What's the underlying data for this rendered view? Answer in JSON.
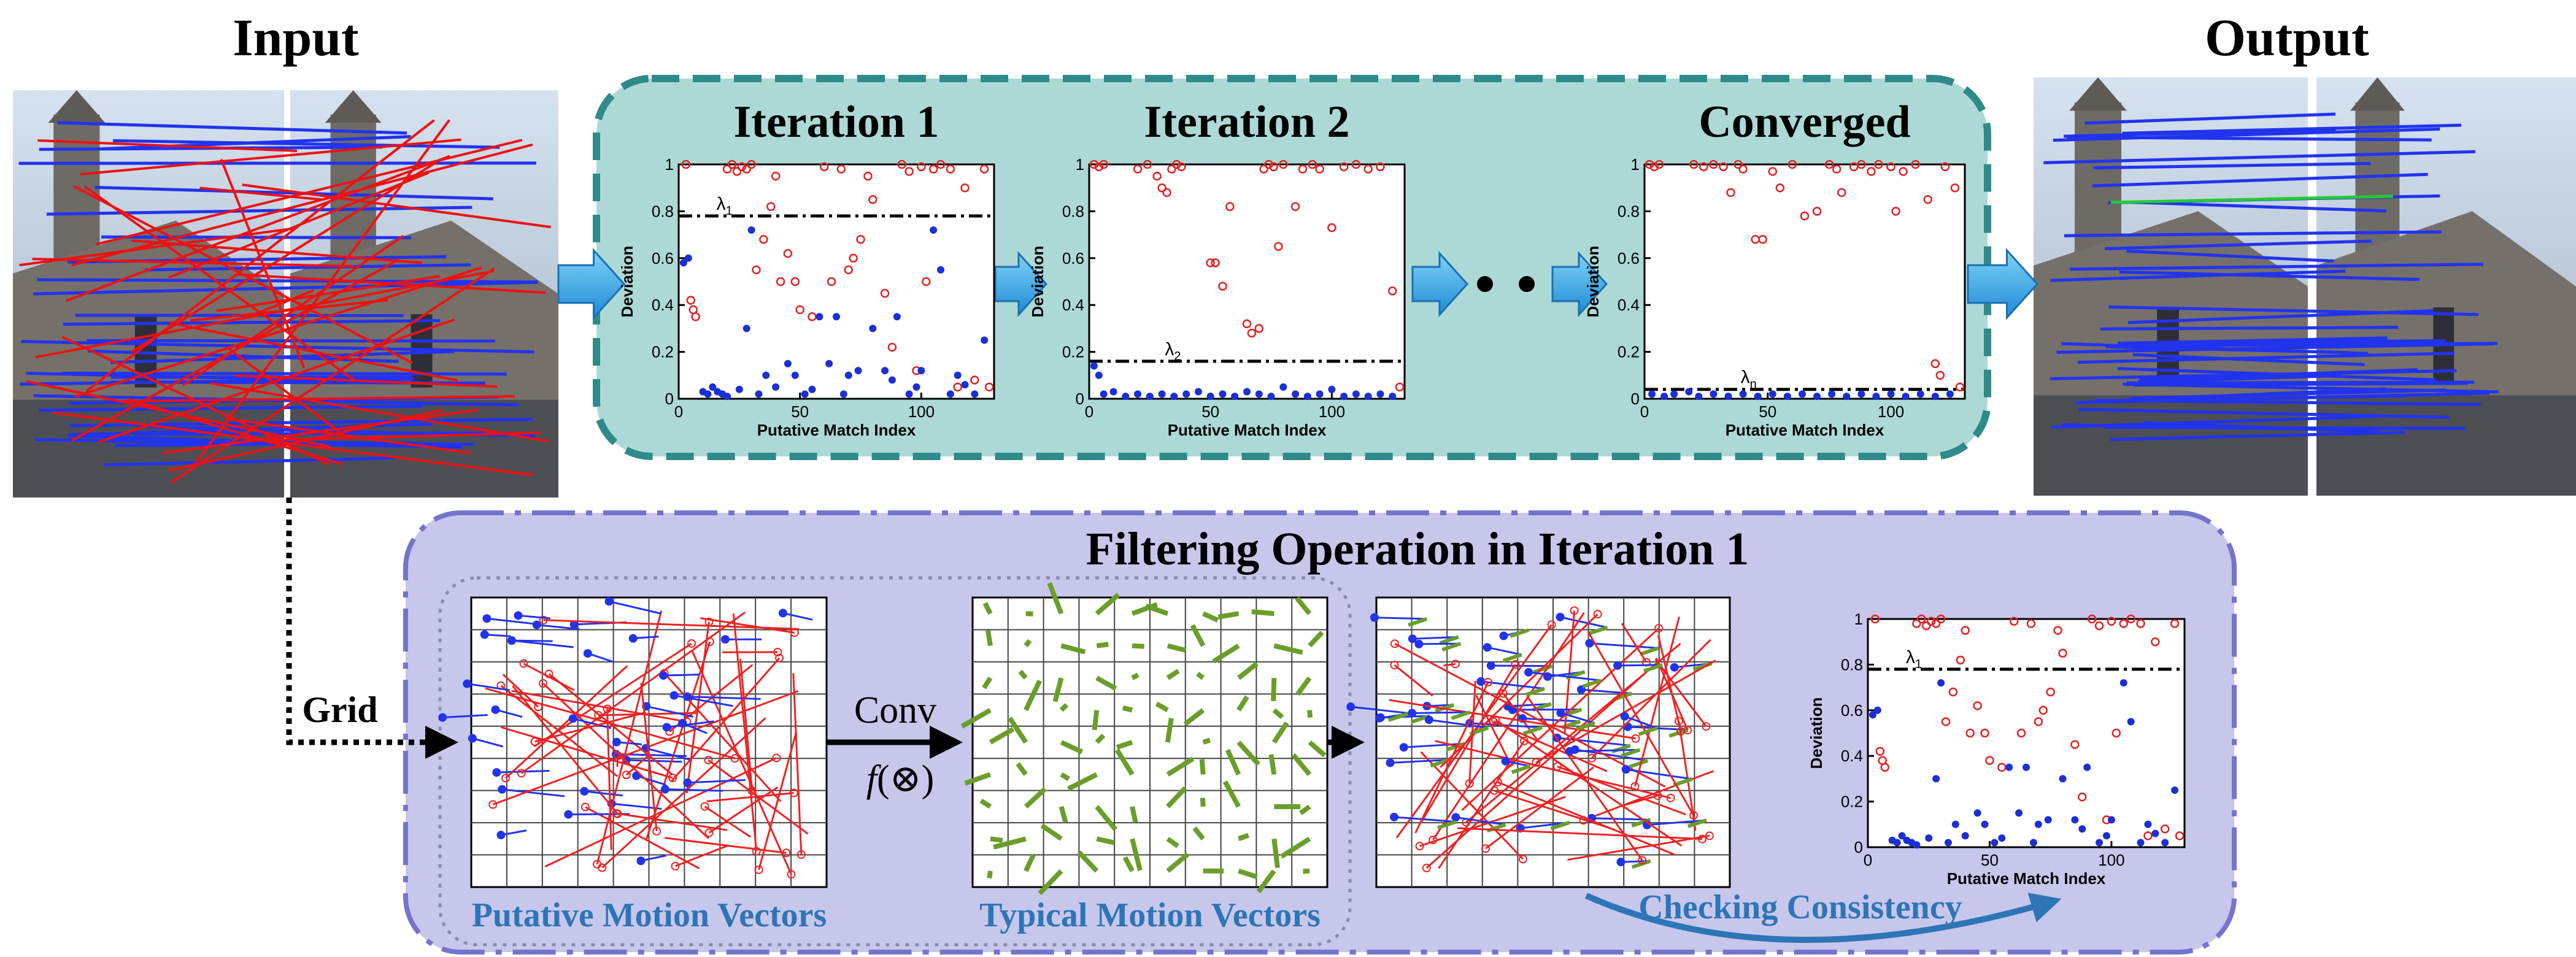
{
  "header": {
    "input": "Input",
    "output": "Output"
  },
  "plots": [
    {
      "title": "Iteration 1",
      "ylabel": "Deviation",
      "xlabel": "Putative Match Index",
      "xlim": [
        0,
        130
      ],
      "ylim": [
        0,
        1
      ],
      "xticks": [
        0,
        50,
        100
      ],
      "yticks": [
        0,
        0.2,
        0.4,
        0.6,
        0.8,
        1
      ],
      "threshold": 0.78,
      "lambda": "λ",
      "lambda_sub": "1",
      "outliers": [
        [
          3,
          1
        ],
        [
          5,
          0.42
        ],
        [
          6,
          0.38
        ],
        [
          7,
          0.35
        ],
        [
          20,
          0.98
        ],
        [
          22,
          1
        ],
        [
          24,
          0.97
        ],
        [
          26,
          0.99
        ],
        [
          28,
          0.98
        ],
        [
          30,
          1
        ],
        [
          32,
          0.55
        ],
        [
          35,
          0.68
        ],
        [
          38,
          0.82
        ],
        [
          40,
          0.95
        ],
        [
          42,
          0.5
        ],
        [
          45,
          0.62
        ],
        [
          48,
          0.5
        ],
        [
          50,
          0.38
        ],
        [
          55,
          0.35
        ],
        [
          60,
          0.99
        ],
        [
          63,
          0.5
        ],
        [
          67,
          0.98
        ],
        [
          70,
          0.55
        ],
        [
          72,
          0.6
        ],
        [
          75,
          0.68
        ],
        [
          78,
          0.95
        ],
        [
          80,
          0.85
        ],
        [
          85,
          0.45
        ],
        [
          88,
          0.22
        ],
        [
          92,
          1
        ],
        [
          95,
          0.97
        ],
        [
          98,
          0.12
        ],
        [
          100,
          0.99
        ],
        [
          102,
          0.5
        ],
        [
          105,
          0.98
        ],
        [
          108,
          1
        ],
        [
          112,
          0.98
        ],
        [
          115,
          0.05
        ],
        [
          118,
          0.9
        ],
        [
          122,
          0.08
        ],
        [
          126,
          0.98
        ],
        [
          128,
          0.05
        ]
      ],
      "inliers": [
        [
          2,
          0.58
        ],
        [
          4,
          0.6
        ],
        [
          10,
          0.03
        ],
        [
          12,
          0.02
        ],
        [
          14,
          0.05
        ],
        [
          16,
          0.03
        ],
        [
          18,
          0.02
        ],
        [
          20,
          0.01
        ],
        [
          25,
          0.04
        ],
        [
          28,
          0.3
        ],
        [
          30,
          0.72
        ],
        [
          33,
          0.02
        ],
        [
          36,
          0.1
        ],
        [
          40,
          0.05
        ],
        [
          45,
          0.15
        ],
        [
          48,
          0.1
        ],
        [
          52,
          0.02
        ],
        [
          55,
          0.04
        ],
        [
          58,
          0.35
        ],
        [
          62,
          0.15
        ],
        [
          65,
          0.35
        ],
        [
          68,
          0.02
        ],
        [
          70,
          0.1
        ],
        [
          74,
          0.12
        ],
        [
          80,
          0.3
        ],
        [
          85,
          0.12
        ],
        [
          88,
          0.08
        ],
        [
          90,
          0.35
        ],
        [
          95,
          0.02
        ],
        [
          98,
          0.05
        ],
        [
          100,
          0.12
        ],
        [
          105,
          0.72
        ],
        [
          108,
          0.55
        ],
        [
          112,
          0.02
        ],
        [
          115,
          0.1
        ],
        [
          118,
          0.06
        ],
        [
          122,
          0.02
        ],
        [
          126,
          0.25
        ]
      ]
    },
    {
      "title": "Iteration 2",
      "ylabel": "Deviation",
      "xlabel": "Putative Match Index",
      "xlim": [
        0,
        130
      ],
      "ylim": [
        0,
        1
      ],
      "xticks": [
        0,
        50,
        100
      ],
      "yticks": [
        0,
        0.2,
        0.4,
        0.6,
        0.8,
        1
      ],
      "threshold": 0.16,
      "lambda": "λ",
      "lambda_sub": "2",
      "outliers": [
        [
          2,
          1
        ],
        [
          4,
          0.99
        ],
        [
          6,
          1
        ],
        [
          20,
          0.98
        ],
        [
          24,
          1
        ],
        [
          28,
          0.95
        ],
        [
          30,
          0.9
        ],
        [
          32,
          0.88
        ],
        [
          34,
          0.98
        ],
        [
          36,
          1
        ],
        [
          38,
          0.99
        ],
        [
          50,
          0.58
        ],
        [
          52,
          0.58
        ],
        [
          55,
          0.48
        ],
        [
          58,
          0.82
        ],
        [
          65,
          0.32
        ],
        [
          67,
          0.28
        ],
        [
          70,
          0.3
        ],
        [
          72,
          0.98
        ],
        [
          74,
          1
        ],
        [
          76,
          0.99
        ],
        [
          78,
          0.65
        ],
        [
          80,
          1
        ],
        [
          85,
          0.82
        ],
        [
          88,
          0.98
        ],
        [
          92,
          1
        ],
        [
          95,
          0.98
        ],
        [
          100,
          0.73
        ],
        [
          105,
          0.99
        ],
        [
          110,
          1
        ],
        [
          115,
          0.98
        ],
        [
          120,
          0.99
        ],
        [
          125,
          0.46
        ],
        [
          128,
          0.05
        ]
      ],
      "inliers": [
        [
          2,
          0.14
        ],
        [
          4,
          0.1
        ],
        [
          6,
          0.02
        ],
        [
          10,
          0.03
        ],
        [
          15,
          0.01
        ],
        [
          20,
          0.02
        ],
        [
          25,
          0.01
        ],
        [
          30,
          0.02
        ],
        [
          35,
          0.01
        ],
        [
          40,
          0.02
        ],
        [
          45,
          0.03
        ],
        [
          50,
          0.01
        ],
        [
          55,
          0.02
        ],
        [
          60,
          0.01
        ],
        [
          65,
          0.03
        ],
        [
          70,
          0.02
        ],
        [
          75,
          0.01
        ],
        [
          80,
          0.05
        ],
        [
          85,
          0.02
        ],
        [
          90,
          0.01
        ],
        [
          95,
          0.02
        ],
        [
          100,
          0.04
        ],
        [
          105,
          0.01
        ],
        [
          110,
          0.02
        ],
        [
          115,
          0.01
        ],
        [
          120,
          0.02
        ],
        [
          125,
          0.01
        ]
      ]
    },
    {
      "title": "Converged",
      "ylabel": "Deviation",
      "xlabel": "Putative Match Index",
      "xlim": [
        0,
        130
      ],
      "ylim": [
        0,
        1
      ],
      "xticks": [
        0,
        50,
        100
      ],
      "yticks": [
        0,
        0.2,
        0.4,
        0.6,
        0.8,
        1
      ],
      "threshold": 0.04,
      "lambda": "λ",
      "lambda_sub": "n",
      "outliers": [
        [
          2,
          1
        ],
        [
          4,
          0.99
        ],
        [
          6,
          1
        ],
        [
          20,
          1
        ],
        [
          24,
          0.99
        ],
        [
          28,
          1
        ],
        [
          32,
          0.99
        ],
        [
          35,
          0.88
        ],
        [
          38,
          1
        ],
        [
          40,
          0.98
        ],
        [
          45,
          0.68
        ],
        [
          48,
          0.68
        ],
        [
          52,
          0.97
        ],
        [
          55,
          0.9
        ],
        [
          60,
          1
        ],
        [
          65,
          0.78
        ],
        [
          70,
          0.8
        ],
        [
          75,
          1
        ],
        [
          78,
          0.98
        ],
        [
          80,
          0.88
        ],
        [
          85,
          0.99
        ],
        [
          88,
          1
        ],
        [
          92,
          0.97
        ],
        [
          95,
          1
        ],
        [
          100,
          0.99
        ],
        [
          102,
          0.8
        ],
        [
          105,
          0.97
        ],
        [
          110,
          1
        ],
        [
          115,
          0.85
        ],
        [
          118,
          0.15
        ],
        [
          120,
          0.1
        ],
        [
          122,
          0.99
        ],
        [
          126,
          0.9
        ],
        [
          128,
          0.05
        ]
      ],
      "inliers": [
        [
          3,
          0.02
        ],
        [
          8,
          0.01
        ],
        [
          12,
          0.02
        ],
        [
          18,
          0.03
        ],
        [
          22,
          0.01
        ],
        [
          28,
          0.02
        ],
        [
          34,
          0.01
        ],
        [
          40,
          0.02
        ],
        [
          46,
          0.01
        ],
        [
          52,
          0.02
        ],
        [
          58,
          0.01
        ],
        [
          64,
          0.02
        ],
        [
          70,
          0.01
        ],
        [
          76,
          0.02
        ],
        [
          82,
          0.01
        ],
        [
          88,
          0.02
        ],
        [
          94,
          0.01
        ],
        [
          100,
          0.02
        ],
        [
          106,
          0.01
        ],
        [
          112,
          0.02
        ],
        [
          118,
          0.01
        ],
        [
          124,
          0.02
        ]
      ]
    },
    {
      "ylabel": "Deviation",
      "xlabel": "Putative Match Index",
      "xlim": [
        0,
        130
      ],
      "ylim": [
        0,
        1
      ],
      "xticks": [
        0,
        50,
        100
      ],
      "yticks": [
        0,
        0.2,
        0.4,
        0.6,
        0.8,
        1
      ],
      "threshold": 0.78,
      "lambda": "λ",
      "lambda_sub": "1",
      "outliers": [
        [
          3,
          1
        ],
        [
          5,
          0.42
        ],
        [
          6,
          0.38
        ],
        [
          7,
          0.35
        ],
        [
          20,
          0.98
        ],
        [
          22,
          1
        ],
        [
          24,
          0.97
        ],
        [
          26,
          0.99
        ],
        [
          28,
          0.98
        ],
        [
          30,
          1
        ],
        [
          32,
          0.55
        ],
        [
          35,
          0.68
        ],
        [
          38,
          0.82
        ],
        [
          40,
          0.95
        ],
        [
          42,
          0.5
        ],
        [
          45,
          0.62
        ],
        [
          48,
          0.5
        ],
        [
          50,
          0.38
        ],
        [
          55,
          0.35
        ],
        [
          60,
          0.99
        ],
        [
          63,
          0.5
        ],
        [
          67,
          0.98
        ],
        [
          70,
          0.55
        ],
        [
          72,
          0.6
        ],
        [
          75,
          0.68
        ],
        [
          78,
          0.95
        ],
        [
          80,
          0.85
        ],
        [
          85,
          0.45
        ],
        [
          88,
          0.22
        ],
        [
          92,
          1
        ],
        [
          95,
          0.97
        ],
        [
          98,
          0.12
        ],
        [
          100,
          0.99
        ],
        [
          102,
          0.5
        ],
        [
          105,
          0.98
        ],
        [
          108,
          1
        ],
        [
          112,
          0.98
        ],
        [
          115,
          0.05
        ],
        [
          118,
          0.9
        ],
        [
          122,
          0.08
        ],
        [
          126,
          0.98
        ],
        [
          128,
          0.05
        ]
      ],
      "inliers": [
        [
          2,
          0.58
        ],
        [
          4,
          0.6
        ],
        [
          10,
          0.03
        ],
        [
          12,
          0.02
        ],
        [
          14,
          0.05
        ],
        [
          16,
          0.03
        ],
        [
          18,
          0.02
        ],
        [
          20,
          0.01
        ],
        [
          25,
          0.04
        ],
        [
          28,
          0.3
        ],
        [
          30,
          0.72
        ],
        [
          33,
          0.02
        ],
        [
          36,
          0.1
        ],
        [
          40,
          0.05
        ],
        [
          45,
          0.15
        ],
        [
          48,
          0.1
        ],
        [
          52,
          0.02
        ],
        [
          55,
          0.04
        ],
        [
          58,
          0.35
        ],
        [
          62,
          0.15
        ],
        [
          65,
          0.35
        ],
        [
          68,
          0.02
        ],
        [
          70,
          0.1
        ],
        [
          74,
          0.12
        ],
        [
          80,
          0.3
        ],
        [
          85,
          0.12
        ],
        [
          88,
          0.08
        ],
        [
          90,
          0.35
        ],
        [
          95,
          0.02
        ],
        [
          98,
          0.05
        ],
        [
          100,
          0.12
        ],
        [
          105,
          0.72
        ],
        [
          108,
          0.55
        ],
        [
          112,
          0.02
        ],
        [
          115,
          0.1
        ],
        [
          118,
          0.06
        ],
        [
          122,
          0.02
        ],
        [
          126,
          0.25
        ]
      ]
    }
  ],
  "filter": {
    "title": "Filtering Operation in Iteration 1",
    "grid_label": "Grid",
    "conv": "Conv",
    "conv_f": "f",
    "conv_op": "(⊗)",
    "putative": "Putative Motion Vectors",
    "typical": "Typical Motion Vectors",
    "checking": "Checking  Consistency"
  }
}
